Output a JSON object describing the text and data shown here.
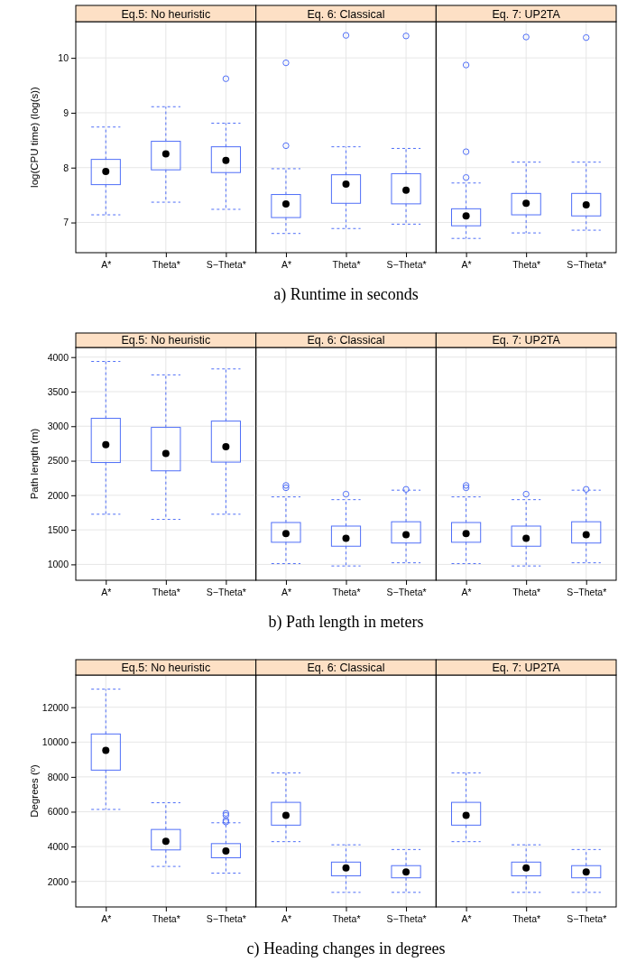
{
  "chart_data": [
    {
      "type": "box",
      "title": "Eq.5: No heuristic",
      "ylabel": "log(CPU time) (log(s))",
      "categories": [
        "A*",
        "Theta*",
        "S−Theta*"
      ],
      "ylim": [
        6.45,
        10.66
      ],
      "yticks": [
        7,
        8,
        9,
        10
      ],
      "grid": true,
      "annotations": [
        "a) Runtime in seconds"
      ],
      "series": [
        {
          "color": "#4f6ef7",
          "boxes": [
            {
              "low": 7.14,
              "q1": 7.69,
              "median": 7.93,
              "q3": 8.15,
              "high": 8.74
            },
            {
              "low": 7.37,
              "q1": 7.96,
              "median": 8.25,
              "q3": 8.48,
              "high": 9.11
            },
            {
              "low": 7.24,
              "q1": 7.91,
              "median": 8.13,
              "q3": 8.38,
              "high": 8.81,
              "outliers": [
                9.62
              ]
            }
          ]
        }
      ]
    },
    {
      "type": "box",
      "title": "Eq. 6: Classical",
      "categories": [
        "A*",
        "Theta*",
        "S−Theta*"
      ],
      "ylim": [
        6.45,
        10.66
      ],
      "yticks": [
        7,
        8,
        9,
        10
      ],
      "grid": true,
      "tick_labels": "x",
      "series": [
        {
          "color": "#4f6ef7",
          "boxes": [
            {
              "low": 6.8,
              "q1": 7.09,
              "median": 7.34,
              "q3": 7.51,
              "high": 7.98,
              "outliers": [
                9.91,
                8.4
              ]
            },
            {
              "low": 6.89,
              "q1": 7.35,
              "median": 7.7,
              "q3": 7.87,
              "high": 8.38,
              "outliers": [
                10.41
              ]
            },
            {
              "low": 6.97,
              "q1": 7.34,
              "median": 7.59,
              "q3": 7.89,
              "high": 8.35,
              "outliers": [
                10.4
              ]
            }
          ]
        }
      ]
    },
    {
      "type": "box",
      "title": "Eq. 7: UP2TA",
      "categories": [
        "A*",
        "Theta*",
        "S−Theta*"
      ],
      "ylim": [
        6.45,
        10.66
      ],
      "yticks": [
        7,
        8,
        9,
        10
      ],
      "grid": true,
      "tick_labels": "x",
      "series": [
        {
          "color": "#4f6ef7",
          "boxes": [
            {
              "low": 6.71,
              "q1": 6.94,
              "median": 7.12,
              "q3": 7.25,
              "high": 7.72,
              "outliers": [
                9.87,
                8.29,
                7.82
              ]
            },
            {
              "low": 6.81,
              "q1": 7.14,
              "median": 7.35,
              "q3": 7.53,
              "high": 8.1,
              "outliers": [
                10.38
              ]
            },
            {
              "low": 6.86,
              "q1": 7.12,
              "median": 7.32,
              "q3": 7.53,
              "high": 8.1,
              "outliers": [
                10.37
              ]
            }
          ]
        }
      ]
    },
    {
      "type": "box",
      "title": "Eq.5: No heuristic",
      "ylabel": "Path length (m)",
      "categories": [
        "A*",
        "Theta*",
        "S−Theta*"
      ],
      "ylim": [
        770,
        4140
      ],
      "yticks": [
        1000,
        1500,
        2000,
        2500,
        3000,
        3500,
        4000
      ],
      "grid": true,
      "annotations": [
        "b) Path length in meters"
      ],
      "series": [
        {
          "color": "#4f6ef7",
          "boxes": [
            {
              "low": 1726,
              "q1": 2474,
              "median": 2731,
              "q3": 3114,
              "high": 3937
            },
            {
              "low": 1651,
              "q1": 2354,
              "median": 2606,
              "q3": 2983,
              "high": 3743
            },
            {
              "low": 1726,
              "q1": 2480,
              "median": 2703,
              "q3": 3074,
              "high": 3829
            }
          ]
        }
      ]
    },
    {
      "type": "box",
      "title": "Eq. 6: Classical",
      "categories": [
        "A*",
        "Theta*",
        "S−Theta*"
      ],
      "ylim": [
        770,
        4140
      ],
      "yticks": [
        1000,
        1500,
        2000,
        2500,
        3000,
        3500,
        4000
      ],
      "grid": true,
      "tick_labels": "x",
      "series": [
        {
          "color": "#4f6ef7",
          "boxes": [
            {
              "low": 1011,
              "q1": 1320,
              "median": 1446,
              "q3": 1606,
              "high": 1977,
              "outliers": [
                2143,
                2109
              ]
            },
            {
              "low": 977,
              "q1": 1263,
              "median": 1377,
              "q3": 1554,
              "high": 1937,
              "outliers": [
                2017
              ]
            },
            {
              "low": 1023,
              "q1": 1309,
              "median": 1429,
              "q3": 1617,
              "high": 2074,
              "outliers": [
                2086
              ]
            }
          ]
        }
      ]
    },
    {
      "type": "box",
      "title": "Eq. 7: UP2TA",
      "categories": [
        "A*",
        "Theta*",
        "S−Theta*"
      ],
      "ylim": [
        770,
        4140
      ],
      "yticks": [
        1000,
        1500,
        2000,
        2500,
        3000,
        3500,
        4000
      ],
      "grid": true,
      "tick_labels": "x",
      "series": [
        {
          "color": "#4f6ef7",
          "boxes": [
            {
              "low": 1011,
              "q1": 1320,
              "median": 1446,
              "q3": 1606,
              "high": 1977,
              "outliers": [
                2143,
                2109
              ]
            },
            {
              "low": 977,
              "q1": 1263,
              "median": 1377,
              "q3": 1554,
              "high": 1937,
              "outliers": [
                2017
              ]
            },
            {
              "low": 1023,
              "q1": 1309,
              "median": 1429,
              "q3": 1617,
              "high": 2074,
              "outliers": [
                2086
              ]
            }
          ]
        }
      ]
    },
    {
      "type": "box",
      "title": "Eq.5: No heuristic",
      "ylabel": "Degrees (º)",
      "categories": [
        "A*",
        "Theta*",
        "S−Theta*"
      ],
      "ylim": [
        530,
        13850
      ],
      "yticks": [
        2000,
        4000,
        6000,
        8000,
        10000,
        12000
      ],
      "grid": true,
      "annotations": [
        "c) Heading changes in degrees"
      ],
      "series": [
        {
          "color": "#4f6ef7",
          "boxes": [
            {
              "low": 6131,
              "q1": 8388,
              "median": 9517,
              "q3": 10465,
              "high": 13038
            },
            {
              "low": 2858,
              "q1": 3806,
              "median": 4302,
              "q3": 4980,
              "high": 6515
            },
            {
              "low": 2474,
              "q1": 3354,
              "median": 3738,
              "q3": 4167,
              "high": 5363,
              "outliers": [
                5905,
                5792,
                5499,
                5409
              ]
            }
          ]
        }
      ]
    },
    {
      "type": "box",
      "title": "Eq. 6: Classical",
      "categories": [
        "A*",
        "Theta*",
        "S−Theta*"
      ],
      "ylim": [
        530,
        13850
      ],
      "yticks": [
        2000,
        4000,
        6000,
        8000,
        10000,
        12000
      ],
      "grid": true,
      "tick_labels": "x",
      "series": [
        {
          "color": "#4f6ef7",
          "boxes": [
            {
              "low": 4280,
              "q1": 5228,
              "median": 5792,
              "q3": 6537,
              "high": 8230
            },
            {
              "low": 1368,
              "q1": 2316,
              "median": 2767,
              "q3": 3106,
              "high": 4099
            },
            {
              "low": 1368,
              "q1": 2203,
              "median": 2542,
              "q3": 2903,
              "high": 3828
            }
          ]
        }
      ]
    },
    {
      "type": "box",
      "title": "Eq. 7: UP2TA",
      "categories": [
        "A*",
        "Theta*",
        "S−Theta*"
      ],
      "ylim": [
        530,
        13850
      ],
      "yticks": [
        2000,
        4000,
        6000,
        8000,
        10000,
        12000
      ],
      "grid": true,
      "tick_labels": "x",
      "series": [
        {
          "color": "#4f6ef7",
          "boxes": [
            {
              "low": 4280,
              "q1": 5228,
              "median": 5792,
              "q3": 6537,
              "high": 8230
            },
            {
              "low": 1368,
              "q1": 2316,
              "median": 2767,
              "q3": 3106,
              "high": 4099
            },
            {
              "low": 1368,
              "q1": 2203,
              "median": 2542,
              "q3": 2903,
              "high": 3828
            }
          ]
        }
      ]
    }
  ]
}
